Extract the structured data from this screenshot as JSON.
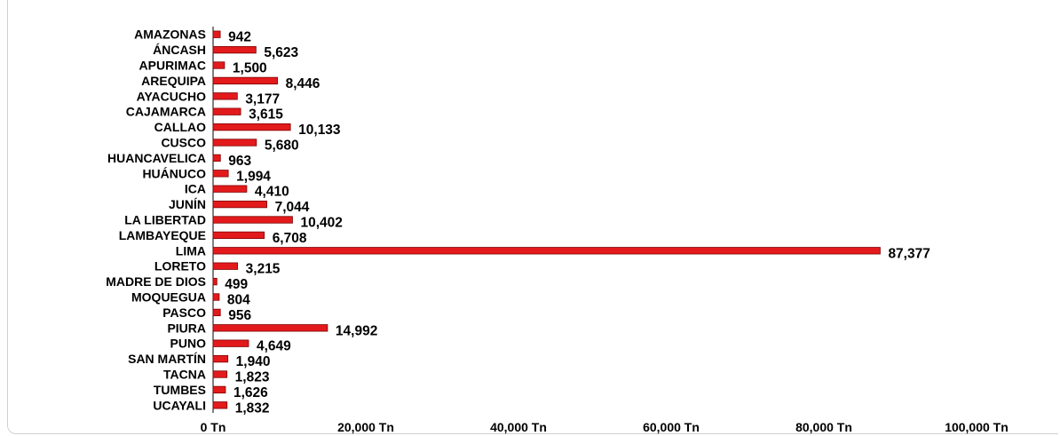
{
  "chart_data": {
    "type": "bar",
    "orientation": "horizontal",
    "categories": [
      "AMAZONAS",
      "ÁNCASH",
      "APURIMAC",
      "AREQUIPA",
      "AYACUCHO",
      "CAJAMARCA",
      "CALLAO",
      "CUSCO",
      "HUANCAVELICA",
      "HUÁNUCO",
      "ICA",
      "JUNÍN",
      "LA LIBERTAD",
      "LAMBAYEQUE",
      "LIMA",
      "LORETO",
      "MADRE DE DIOS",
      "MOQUEGUA",
      "PASCO",
      "PIURA",
      "PUNO",
      "SAN MARTÍN",
      "TACNA",
      "TUMBES",
      "UCAYALI"
    ],
    "values": [
      942,
      5623,
      1500,
      8446,
      3177,
      3615,
      10133,
      5680,
      963,
      1994,
      4410,
      7044,
      10402,
      6708,
      87377,
      3215,
      499,
      804,
      956,
      14992,
      4649,
      1940,
      1823,
      1626,
      1832
    ],
    "value_labels": [
      "942",
      "5,623",
      "1,500",
      "8,446",
      "3,177",
      "3,615",
      "10,133",
      "5,680",
      "963",
      "1,994",
      "4,410",
      "7,044",
      "10,402",
      "6,708",
      "87,377",
      "3,215",
      "499",
      "804",
      "956",
      "14,992",
      "4,649",
      "1,940",
      "1,823",
      "1,626",
      "1,832"
    ],
    "xlim": [
      0,
      100000
    ],
    "xticks": [
      0,
      20000,
      40000,
      60000,
      80000,
      100000
    ],
    "xtick_labels": [
      "0 Tn",
      "20,000 Tn",
      "40,000 Tn",
      "60,000 Tn",
      "80,000 Tn",
      "100,000 Tn"
    ],
    "title": "",
    "xlabel": "",
    "ylabel": "",
    "grid": false,
    "legend": "none",
    "bar_color": "#e31a1c",
    "bar_edge_color": "#800000"
  }
}
